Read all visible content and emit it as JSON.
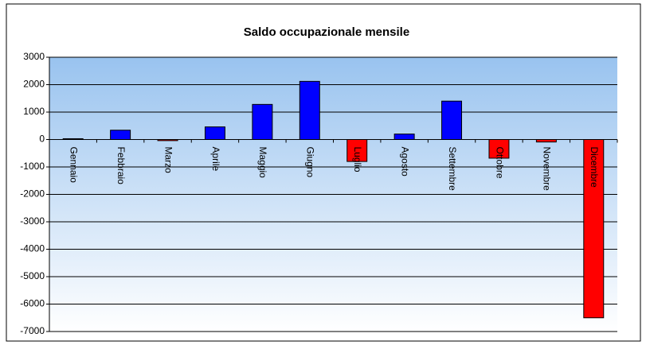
{
  "chart_data": {
    "type": "bar",
    "title": "Saldo occupazionale mensile",
    "categories": [
      "Gennaio",
      "Febbraio",
      "Marzo",
      "Aprile",
      "Maggio",
      "Giugno",
      "Luglio",
      "Agosto",
      "Settembre",
      "Ottobre",
      "Novembre",
      "Dicembre"
    ],
    "values": [
      30,
      340,
      -40,
      460,
      1280,
      2120,
      -800,
      200,
      1400,
      -680,
      -90,
      -6500
    ],
    "color": "#0000ff",
    "negative_color": "#ff0000",
    "ylim": [
      -7000,
      3000
    ],
    "yticks": [
      -7000,
      -6000,
      -5000,
      -4000,
      -3000,
      -2000,
      -1000,
      0,
      1000,
      2000,
      3000
    ],
    "grid": true
  }
}
